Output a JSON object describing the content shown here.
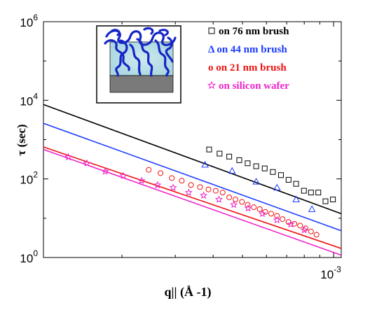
{
  "chart_data": {
    "type": "scatter",
    "title": "",
    "xlabel": "q|| (Å -1)",
    "ylabel": "τ (sec)",
    "x_scale": "log",
    "y_scale": "log",
    "xlim": [
      0.00011,
      0.00106
    ],
    "ylim": [
      1,
      1000000
    ],
    "grid": false,
    "legend_position": "top-right",
    "y_tick_labels": [
      {
        "value": 1,
        "base": "10",
        "exp": "0"
      },
      {
        "value": 100,
        "base": "10",
        "exp": "2"
      },
      {
        "value": 10000,
        "base": "10",
        "exp": "4"
      },
      {
        "value": 1000000,
        "base": "10",
        "exp": "6"
      }
    ],
    "x_tick_labels": [
      {
        "value": 0.001,
        "base": "10",
        "exp": "-3"
      }
    ],
    "series": [
      {
        "name": "on 76 nm brush",
        "marker": "square",
        "color": "#000000",
        "line_color": "#000000",
        "fit": {
          "x": [
            0.00011,
            0.00106
          ],
          "y": [
            7800,
            13
          ]
        },
        "x": [
          0.000388,
          0.00042,
          0.000452,
          0.000488,
          0.00052,
          0.000555,
          0.000592,
          0.00063,
          0.00067,
          0.00071,
          0.000752,
          0.000798,
          0.000842,
          0.00089,
          0.00094,
          0.000995
        ],
        "y": [
          560,
          440,
          370,
          300,
          250,
          210,
          185,
          150,
          125,
          95,
          75,
          50,
          45,
          45,
          27,
          30
        ]
      },
      {
        "name": "Δ on 44 nm brush",
        "marker": "triangle",
        "color": "#1a3cff",
        "line_color": "#1a3cff",
        "fit": {
          "x": [
            0.00011,
            0.00106
          ],
          "y": [
            2600,
            4.8
          ]
        },
        "x": [
          0.000376,
          0.000462,
          0.000555,
          0.00065,
          0.000752,
          0.000848
        ],
        "y": [
          230,
          160,
          85,
          60,
          30,
          17
        ]
      },
      {
        "name": "o on 21 nm brush",
        "marker": "circle",
        "color": "#ee1111",
        "line_color": "#ee1111",
        "fit": {
          "x": [
            0.00011,
            0.00106
          ],
          "y": [
            650,
            1.7
          ]
        },
        "x": [
          0.000245,
          0.000268,
          0.000292,
          0.000315,
          0.000338,
          0.000362,
          0.000386,
          0.000408,
          0.00043,
          0.000452,
          0.000474,
          0.000498,
          0.00052,
          0.000545,
          0.00057,
          0.000595,
          0.000622,
          0.00065,
          0.000678,
          0.00071,
          0.000742,
          0.000775,
          0.000808,
          0.000842,
          0.000878
        ],
        "y": [
          170,
          140,
          105,
          90,
          70,
          62,
          54,
          50,
          45,
          34,
          30,
          26,
          22,
          19,
          17,
          14.5,
          13,
          11.5,
          9.5,
          8,
          7.2,
          6.5,
          5.5,
          4.6,
          3.8
        ]
      },
      {
        "name": "on silicon wafer",
        "marker": "star",
        "color": "#ee22cc",
        "line_color": "#ee22cc",
        "fit": {
          "x": [
            0.00011,
            0.00106
          ],
          "y": [
            560,
            1.15
          ]
        },
        "x": [
          0.000133,
          0.000153,
          0.000176,
          0.000202,
          0.000232,
          0.000262,
          0.000295,
          0.000332,
          0.000372,
          0.000418,
          0.000468,
          0.000522,
          0.000582,
          0.00065,
          0.000722,
          0.0008
        ],
        "y": [
          360,
          250,
          155,
          120,
          90,
          70,
          60,
          45,
          38,
          30,
          22,
          18,
          13,
          9,
          7,
          5
        ]
      }
    ]
  }
}
